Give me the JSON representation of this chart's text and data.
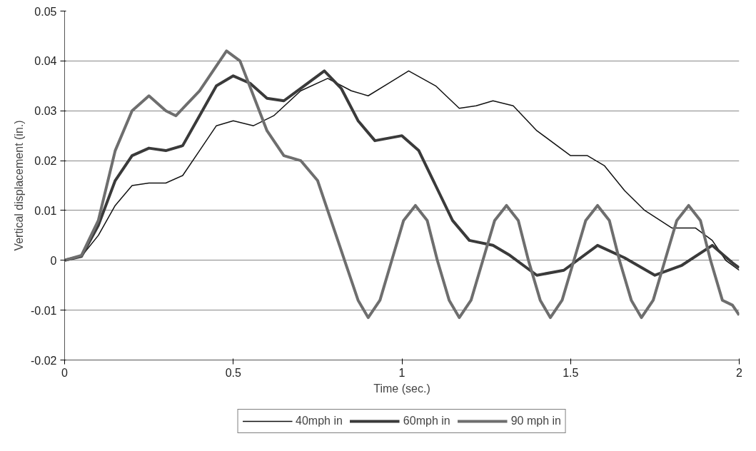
{
  "chart_data": {
    "type": "line",
    "xlabel": "Time (sec.)",
    "ylabel": "Vertical displacement (in.)",
    "xlim": [
      0,
      2
    ],
    "ylim": [
      -0.02,
      0.05
    ],
    "xticks": [
      0,
      0.5,
      1,
      1.5,
      2
    ],
    "yticks": [
      -0.02,
      -0.01,
      0,
      0.01,
      0.02,
      0.03,
      0.04,
      0.05
    ],
    "grid": "y",
    "legend": "bottom",
    "marker": "none",
    "line_style": "solid",
    "series": [
      {
        "name": "40mph in",
        "color": "#111111",
        "x": [
          0,
          0.05,
          0.1,
          0.15,
          0.2,
          0.25,
          0.3,
          0.35,
          0.4,
          0.45,
          0.5,
          0.56,
          0.62,
          0.7,
          0.78,
          0.85,
          0.9,
          0.96,
          1.02,
          1.1,
          1.17,
          1.22,
          1.27,
          1.33,
          1.4,
          1.5,
          1.55,
          1.6,
          1.66,
          1.72,
          1.8,
          1.87,
          1.92,
          1.96,
          2.0
        ],
        "values": [
          0,
          0.0008,
          0.005,
          0.011,
          0.015,
          0.0155,
          0.0155,
          0.017,
          0.022,
          0.027,
          0.028,
          0.027,
          0.029,
          0.034,
          0.0365,
          0.034,
          0.033,
          0.0355,
          0.038,
          0.035,
          0.0305,
          0.031,
          0.032,
          0.031,
          0.026,
          0.021,
          0.021,
          0.019,
          0.014,
          0.01,
          0.0065,
          0.0065,
          0.004,
          0.0,
          -0.002
        ]
      },
      {
        "name": "60mph in",
        "color": "#3a3a3a",
        "x": [
          0,
          0.05,
          0.1,
          0.15,
          0.2,
          0.25,
          0.3,
          0.35,
          0.4,
          0.45,
          0.5,
          0.55,
          0.6,
          0.65,
          0.7,
          0.77,
          0.82,
          0.87,
          0.92,
          1.0,
          1.05,
          1.1,
          1.15,
          1.2,
          1.27,
          1.32,
          1.4,
          1.48,
          1.58,
          1.66,
          1.75,
          1.83,
          1.92,
          1.98,
          2.0
        ],
        "values": [
          0,
          0.0008,
          0.007,
          0.016,
          0.021,
          0.0225,
          0.022,
          0.023,
          0.029,
          0.035,
          0.037,
          0.0355,
          0.0325,
          0.032,
          0.0345,
          0.038,
          0.0345,
          0.028,
          0.024,
          0.025,
          0.022,
          0.015,
          0.008,
          0.004,
          0.003,
          0.001,
          -0.003,
          -0.002,
          0.003,
          0.0005,
          -0.003,
          -0.001,
          0.003,
          -0.0005,
          -0.0015
        ]
      },
      {
        "name": "90 mph in",
        "color": "#6e6e6e",
        "x": [
          0,
          0.05,
          0.1,
          0.15,
          0.2,
          0.25,
          0.3,
          0.33,
          0.4,
          0.48,
          0.52,
          0.56,
          0.6,
          0.65,
          0.7,
          0.75,
          0.8,
          0.835,
          0.87,
          0.9,
          0.935,
          0.97,
          1.005,
          1.04,
          1.075,
          1.105,
          1.14,
          1.17,
          1.205,
          1.24,
          1.275,
          1.31,
          1.345,
          1.375,
          1.41,
          1.44,
          1.475,
          1.51,
          1.545,
          1.58,
          1.615,
          1.645,
          1.68,
          1.71,
          1.745,
          1.78,
          1.815,
          1.85,
          1.885,
          1.915,
          1.95,
          1.98,
          2.0
        ],
        "values": [
          0,
          0.001,
          0.008,
          0.022,
          0.03,
          0.033,
          0.03,
          0.029,
          0.034,
          0.042,
          0.04,
          0.033,
          0.026,
          0.021,
          0.02,
          0.016,
          0.006,
          -0.001,
          -0.008,
          -0.0115,
          -0.008,
          0.0,
          0.008,
          0.011,
          0.008,
          0.0,
          -0.008,
          -0.0115,
          -0.008,
          0.0,
          0.008,
          0.011,
          0.008,
          0.0,
          -0.008,
          -0.0115,
          -0.008,
          0.0,
          0.008,
          0.011,
          0.008,
          0.0,
          -0.008,
          -0.0115,
          -0.008,
          0.0,
          0.008,
          0.011,
          0.008,
          0.0,
          -0.008,
          -0.009,
          -0.011
        ]
      }
    ]
  }
}
